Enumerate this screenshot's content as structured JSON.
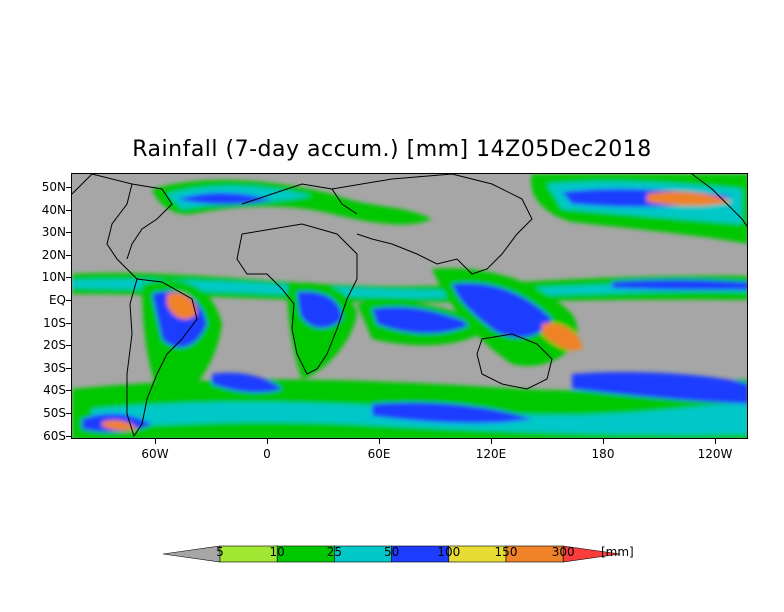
{
  "title": "Rainfall (7-day accum.) [mm] 14Z05Dec2018",
  "map": {
    "latitude_labels": [
      "50N",
      "40N",
      "30N",
      "20N",
      "10N",
      "EQ",
      "10S",
      "20S",
      "30S",
      "40S",
      "50S",
      "60S"
    ],
    "longitude_labels": [
      "60W",
      "0",
      "60E",
      "120E",
      "180",
      "120W"
    ],
    "background_color": "#a6a6a6",
    "coastline_color": "#000000"
  },
  "legend": {
    "colors": [
      "#a6a6a6",
      "#a0e632",
      "#00c800",
      "#00c8c8",
      "#1e3cff",
      "#e6dc32",
      "#f08228",
      "#fa3c3c"
    ],
    "labels": [
      "5",
      "10",
      "25",
      "50",
      "100",
      "150",
      "300"
    ],
    "unit": "[mm]"
  }
}
